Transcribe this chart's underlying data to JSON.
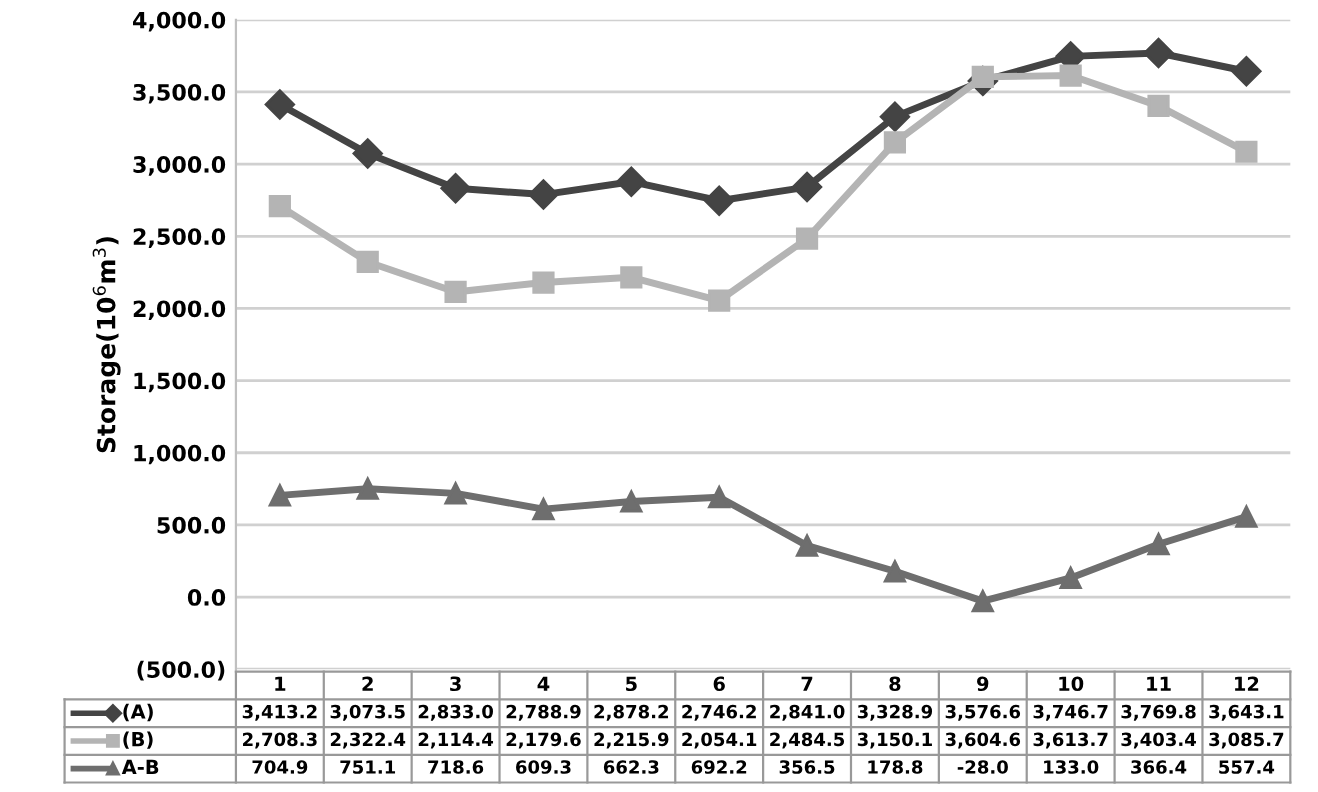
{
  "chart_data": {
    "type": "line",
    "ylabel": "Storage(10$^{6}$m$^{3}$)",
    "categories": [
      "1",
      "2",
      "3",
      "4",
      "5",
      "6",
      "7",
      "8",
      "9",
      "10",
      "11",
      "12"
    ],
    "series": [
      {
        "name": "(A)",
        "color": "#444444",
        "marker": "diamond",
        "values": [
          3413.2,
          3073.5,
          2833.0,
          2788.9,
          2878.2,
          2746.2,
          2841.0,
          3328.9,
          3576.6,
          3746.7,
          3769.8,
          3643.1
        ],
        "value_labels": [
          "3,413.2",
          "3,073.5",
          "2,833.0",
          "2,788.9",
          "2,878.2",
          "2,746.2",
          "2,841.0",
          "3,328.9",
          "3,576.6",
          "3,746.7",
          "3,769.8",
          "3,643.1"
        ]
      },
      {
        "name": "(B)",
        "color": "#b4b4b4",
        "marker": "square",
        "values": [
          2708.3,
          2322.4,
          2114.4,
          2179.6,
          2215.9,
          2054.1,
          2484.5,
          3150.1,
          3604.6,
          3613.7,
          3403.4,
          3085.7
        ],
        "value_labels": [
          "2,708.3",
          "2,322.4",
          "2,114.4",
          "2,179.6",
          "2,215.9",
          "2,054.1",
          "2,484.5",
          "3,150.1",
          "3,604.6",
          "3,613.7",
          "3,403.4",
          "3,085.7"
        ]
      },
      {
        "name": "A-B",
        "color": "#6e6e6e",
        "marker": "triangle",
        "values": [
          704.9,
          751.1,
          718.6,
          609.3,
          662.3,
          692.2,
          356.5,
          178.8,
          -28.0,
          133.0,
          366.4,
          557.4
        ],
        "value_labels": [
          "704.9",
          "751.1",
          "718.6",
          "609.3",
          "662.3",
          "692.2",
          "356.5",
          "178.8",
          "-28.0",
          "133.0",
          "366.4",
          "557.4"
        ]
      }
    ],
    "ylim": [
      -500,
      4000
    ],
    "yticks": [
      {
        "value": -500,
        "label": "(500.0)"
      },
      {
        "value": 0,
        "label": "0.0"
      },
      {
        "value": 500,
        "label": "500.0"
      },
      {
        "value": 1000,
        "label": "1,000.0"
      },
      {
        "value": 1500,
        "label": "1,500.0"
      },
      {
        "value": 2000,
        "label": "2,000.0"
      },
      {
        "value": 2500,
        "label": "2,500.0"
      },
      {
        "value": 3000,
        "label": "3,000.0"
      },
      {
        "value": 3500,
        "label": "3,500.0"
      },
      {
        "value": 4000,
        "label": "4,000.0"
      }
    ],
    "grid": "y",
    "legend": "bottom left",
    "line_style": "solid"
  }
}
